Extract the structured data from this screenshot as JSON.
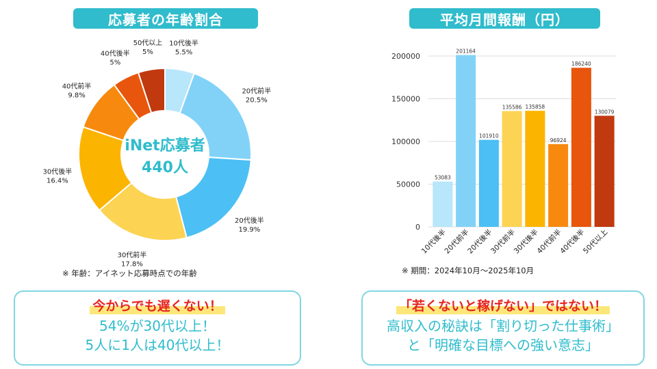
{
  "left_title": "応募者の年齢割合",
  "right_title": "平均月間報酬（円）",
  "colors": {
    "accent": "#30bccc",
    "highlight": "#e52520",
    "marker": "#fde77a"
  },
  "chart_data": [
    {
      "type": "pie",
      "title": "応募者の年齢割合",
      "center_label": [
        "iNet応募者",
        "440人"
      ],
      "slices": [
        {
          "label": "10代後半",
          "value": 5.5,
          "pct": "5.5%",
          "color": "#b8e6fb"
        },
        {
          "label": "20代前半",
          "value": 20.5,
          "pct": "20.5%",
          "color": "#82d2f8"
        },
        {
          "label": "20代後半",
          "value": 19.9,
          "pct": "19.9%",
          "color": "#4cbff4"
        },
        {
          "label": "30代前半",
          "value": 17.8,
          "pct": "17.8%",
          "color": "#fcd352"
        },
        {
          "label": "30代後半",
          "value": 16.4,
          "pct": "16.4%",
          "color": "#fbb400"
        },
        {
          "label": "40代前半",
          "value": 9.8,
          "pct": "9.8%",
          "color": "#f78a0e"
        },
        {
          "label": "40代後半",
          "value": 5,
          "pct": "5%",
          "color": "#e8550c"
        },
        {
          "label": "50代以上",
          "value": 5,
          "pct": "5%",
          "color": "#c0390f"
        }
      ],
      "note": "※ 年齢：アイネット応募時点での年齢"
    },
    {
      "type": "bar",
      "title": "平均月間報酬（円）",
      "categories": [
        "10代後半",
        "20代前半",
        "20代後半",
        "30代前半",
        "30代後半",
        "40代前半",
        "40代後半",
        "50代以上"
      ],
      "values": [
        53083,
        201164,
        101910,
        135586,
        135858,
        96924,
        186240,
        130079
      ],
      "colors": [
        "#b8e6fb",
        "#82d2f8",
        "#4cbff4",
        "#fcd352",
        "#fbb400",
        "#f78a0e",
        "#e8550c",
        "#c0390f"
      ],
      "ylim": [
        0,
        200000
      ],
      "yticks": [
        0,
        50000,
        100000,
        150000,
        200000
      ],
      "grid": true,
      "note": "※ 期間：2024年10月～2025年10月"
    }
  ],
  "left_box": {
    "headline": "今からでも遅くない！",
    "line1": "54%が30代以上！",
    "line2": "5人に1人は40代以上！"
  },
  "right_box": {
    "headline": "「若くないと稼げない」ではない！",
    "line1": "高収入の秘訣は「割り切った仕事術」",
    "line2": "と「明確な目標への強い意志」"
  }
}
